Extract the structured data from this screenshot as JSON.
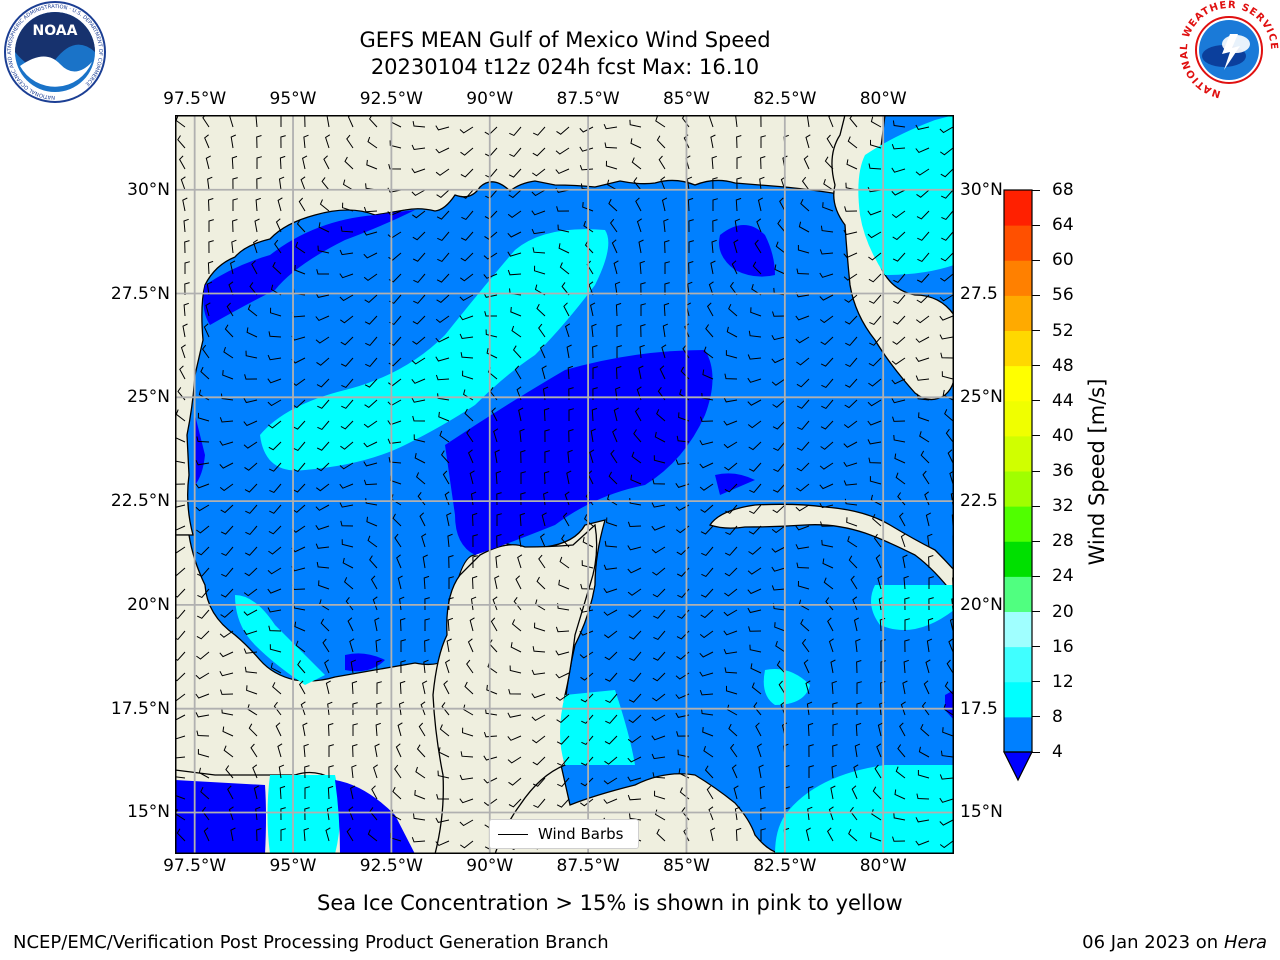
{
  "title": {
    "line1": "GEFS MEAN Gulf of Mexico Wind Speed",
    "line2": "20230104 t12z 024h fcst   Max: 16.10"
  },
  "map": {
    "lon_ticks": [
      "97.5°W",
      "95°W",
      "92.5°W",
      "90°W",
      "87.5°W",
      "85°W",
      "82.5°W",
      "80°W"
    ],
    "lon_values": [
      -97.5,
      -95,
      -92.5,
      -90,
      -87.5,
      -85,
      -82.5,
      -80
    ],
    "lat_ticks": [
      "30°N",
      "27.5°N",
      "25°N",
      "22.5°N",
      "20°N",
      "17.5°N",
      "15°N"
    ],
    "lat_values": [
      30,
      27.5,
      25,
      22.5,
      20,
      17.5,
      15
    ],
    "lat_ticks_right": [
      "30°N",
      "27.5",
      "25°N",
      "22.5",
      "20°N",
      "17.5",
      "15°N"
    ],
    "extent": {
      "lon_min": -98,
      "lon_max": -78.2,
      "lat_min": 14.0,
      "lat_max": 31.8
    },
    "land_color": "#efefdf",
    "legend_label": "Wind Barbs"
  },
  "colorbar": {
    "label": "Wind Speed [m/s]",
    "ticks": [
      "68",
      "64",
      "60",
      "56",
      "52",
      "48",
      "44",
      "40",
      "36",
      "32",
      "28",
      "24",
      "20",
      "16",
      "12",
      "8",
      "4"
    ],
    "tick_values": [
      68,
      64,
      60,
      56,
      52,
      48,
      44,
      40,
      36,
      32,
      28,
      24,
      20,
      16,
      12,
      8,
      4
    ],
    "levels": [
      4,
      8,
      12,
      16,
      20,
      24,
      28,
      32,
      36,
      40,
      44,
      48,
      52,
      56,
      60,
      64,
      68
    ],
    "colors": [
      "#0080ff",
      "#00ffff",
      "#40ffff",
      "#a0ffff",
      "#50ff80",
      "#00e000",
      "#50ff00",
      "#a0ff00",
      "#d0ff00",
      "#f0ff00",
      "#ffff00",
      "#ffd800",
      "#ffaa00",
      "#ff8000",
      "#ff5000",
      "#ff2000"
    ],
    "under_color": "#0000ff"
  },
  "caption": "Sea Ice Concentration > 15% is shown in pink to yellow",
  "footer": {
    "left": "NCEP/EMC/Verification Post Processing Product Generation Branch",
    "right_date": "06 Jan 2023 on ",
    "right_machine": "Hera"
  },
  "logos": {
    "noaa_text": "NOAA",
    "noaa_ring": "NATIONAL OCEANIC AND ATMOSPHERIC ADMINISTRATION · U.S. DEPARTMENT OF COMMERCE",
    "nws_ring": "NATIONAL WEATHER SERVICE"
  }
}
